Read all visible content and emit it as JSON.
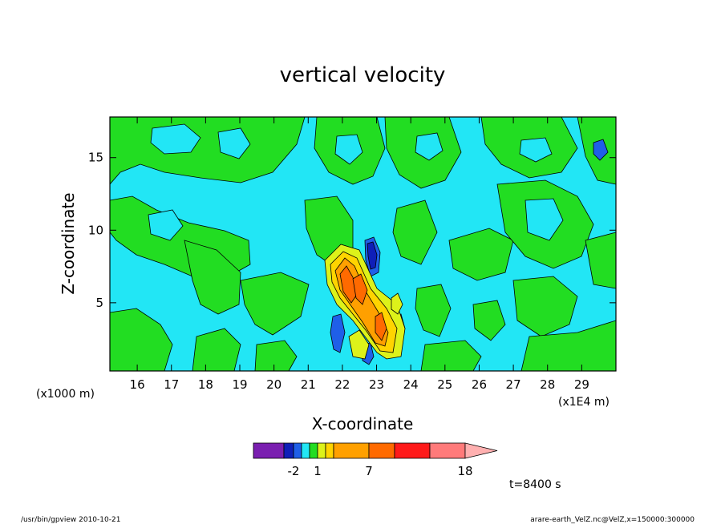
{
  "chart_data": {
    "type": "heatmap",
    "title": "vertical velocity",
    "xlabel": "X-coordinate",
    "ylabel": "Z-coordinate",
    "x_unit": "(x1E4 m)",
    "y_unit": "(x1000 m)",
    "xlim": [
      15.2,
      30.0
    ],
    "ylim": [
      0.3,
      17.8
    ],
    "x_ticks": [
      16,
      17,
      18,
      19,
      20,
      21,
      22,
      23,
      24,
      25,
      26,
      27,
      28,
      29
    ],
    "y_ticks": [
      5,
      10,
      15
    ],
    "time_label": "t=8400 s",
    "colorbar": {
      "colors": [
        "#7a1fb0",
        "#0f1fb8",
        "#1f5fe8",
        "#22e6f5",
        "#22dd22",
        "#ddf21a",
        "#ffd400",
        "#ffa000",
        "#ff6a00",
        "#ff1a1a",
        "#ff7a7a",
        "#ffb0b0"
      ],
      "tick_labels": [
        "-2",
        "1",
        "7",
        "18"
      ]
    }
  },
  "footer": {
    "left": "/usr/bin/gpview   2010-10-21",
    "right": "arare-earth_VelZ.nc@VelZ,x=150000:300000"
  }
}
